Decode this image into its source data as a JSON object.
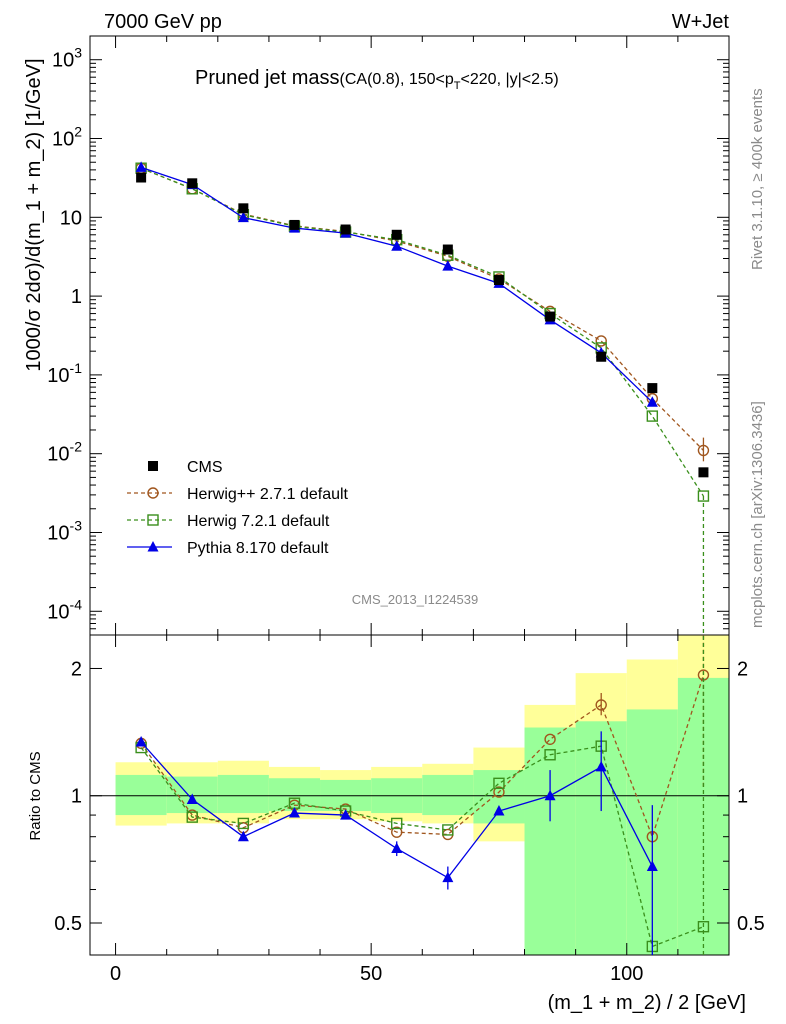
{
  "header": {
    "left": "7000 GeV pp",
    "right": "W+Jet"
  },
  "side": {
    "rivet": "Rivet 3.1.10, ≥ 400k events",
    "mcplots": "mcplots.cern.ch [arXiv:1306.3436]"
  },
  "chart_data": {
    "type": "line",
    "title": "Pruned jet mass",
    "subtitle": "(CA(0.8), 150<p_T<220, |y|<2.5)",
    "subtitle_parts": {
      "a": "(CA(0.8), 150<p",
      "sub": "T",
      "b": "<220, |y|<2.5)"
    },
    "analysis_id": "CMS_2013_I1224539",
    "ylabel": "1000/σ 2dσ)/d(m_1 + m_2) [1/GeV]",
    "xlabel": "(m_1 + m_2) / 2 [GeV]",
    "ratio_ylabel": "Ratio to CMS",
    "xlim": [
      -5,
      120
    ],
    "ylim": [
      5e-05,
      2000
    ],
    "yscale": "log",
    "ratio_ylim": [
      0.42,
      2.4
    ],
    "ratio_yscale": "log",
    "x_ticks": [
      "0",
      "50",
      "100"
    ],
    "y_ticks": [
      "10^3",
      "10^2",
      "10",
      "1",
      "10^-1",
      "10^-2",
      "10^-3",
      "10^-4"
    ],
    "ratio_ticks": [
      "2",
      "1",
      "0.5"
    ],
    "legend_position": "bottom-left",
    "x": [
      5,
      15,
      25,
      35,
      45,
      55,
      65,
      75,
      85,
      95,
      105,
      115
    ],
    "series": [
      {
        "name": "CMS",
        "color": "#000000",
        "marker": "square-filled",
        "values": [
          32,
          27,
          13,
          8,
          7,
          6,
          3.9,
          1.6,
          0.55,
          0.17,
          0.068,
          0.0058
        ]
      },
      {
        "name": "Herwig++ 2.7.1 default",
        "color": "#a0561e",
        "marker": "circle-open",
        "dashed": true,
        "values": [
          42,
          23,
          11,
          7.8,
          6.6,
          5.0,
          3.2,
          1.65,
          0.64,
          0.27,
          0.05,
          0.011
        ]
      },
      {
        "name": "Herwig 7.2.1 default",
        "color": "#3a8f1c",
        "marker": "square-open",
        "dashed": true,
        "values": [
          42,
          23,
          10.8,
          7.7,
          6.5,
          5.2,
          3.3,
          1.75,
          0.6,
          0.22,
          0.03,
          0.0029
        ]
      },
      {
        "name": "Pythia 8.170 default",
        "color": "#0000e6",
        "marker": "triangle-filled",
        "values": [
          43,
          26,
          9.9,
          7.3,
          6.3,
          4.3,
          2.4,
          1.45,
          0.5,
          0.19,
          0.045,
          null
        ]
      }
    ],
    "ratio_series": [
      {
        "name": "Herwig++ 2.7.1 default",
        "values": [
          1.33,
          0.9,
          0.84,
          0.95,
          0.93,
          0.82,
          0.81,
          1.02,
          1.36,
          1.64,
          0.8,
          1.93
        ]
      },
      {
        "name": "Herwig 7.2.1 default",
        "values": [
          1.3,
          0.89,
          0.86,
          0.96,
          0.92,
          0.86,
          0.83,
          1.07,
          1.25,
          1.31,
          0.44,
          0.49
        ]
      },
      {
        "name": "Pythia 8.170 default",
        "values": [
          1.34,
          0.98,
          0.8,
          0.91,
          0.9,
          0.75,
          0.64,
          0.92,
          1.0,
          1.17,
          0.68,
          null
        ]
      }
    ],
    "ratio_bands": {
      "edges": [
        0,
        10,
        20,
        30,
        40,
        50,
        60,
        70,
        80,
        90,
        100,
        110,
        120
      ],
      "stat_low": [
        0.9,
        0.91,
        0.91,
        0.92,
        0.92,
        0.91,
        0.9,
        0.86,
        0.2,
        0.2,
        0.2,
        0.2
      ],
      "stat_high": [
        1.12,
        1.11,
        1.12,
        1.1,
        1.09,
        1.1,
        1.12,
        1.15,
        1.45,
        1.5,
        1.6,
        1.9
      ],
      "syst_low": [
        0.85,
        0.86,
        0.86,
        0.88,
        0.88,
        0.87,
        0.86,
        0.78,
        0.2,
        0.2,
        0.2,
        0.2
      ],
      "syst_high": [
        1.2,
        1.2,
        1.21,
        1.17,
        1.15,
        1.17,
        1.19,
        1.3,
        1.64,
        1.95,
        2.1,
        2.4
      ]
    }
  }
}
